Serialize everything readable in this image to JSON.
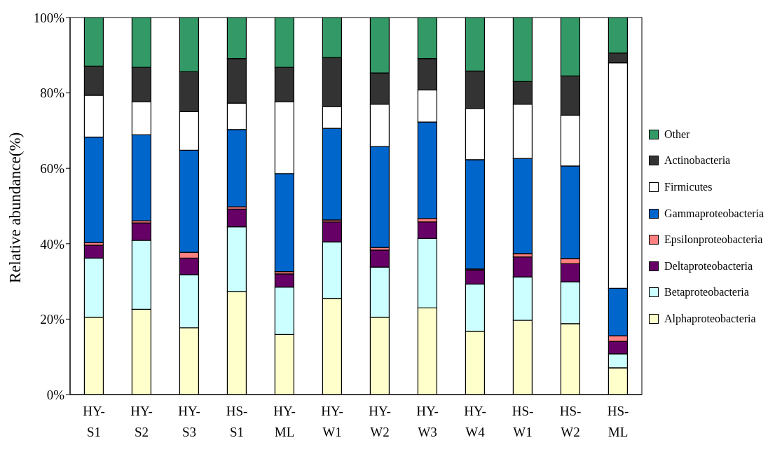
{
  "chart_data": {
    "type": "bar",
    "stacked": true,
    "ylabel": "Relative abundance(%)",
    "categories": [
      "HY-S1",
      "HY-S2",
      "HY-S3",
      "HS-S1",
      "HY-ML",
      "HY-W1",
      "HY-W2",
      "HY-W3",
      "HY-W4",
      "HS-W1",
      "HS-W2",
      "HS-ML"
    ],
    "ylim": [
      0,
      100
    ],
    "yticks": [
      {
        "value": 0,
        "label": "0%"
      },
      {
        "value": 20,
        "label": "20%"
      },
      {
        "value": 40,
        "label": "40%"
      },
      {
        "value": 60,
        "label": "60%"
      },
      {
        "value": 80,
        "label": "80%"
      },
      {
        "value": 100,
        "label": "100%"
      }
    ],
    "grid": false,
    "legend": "right",
    "series": [
      {
        "name": "Alphaproteobacteria",
        "color": "#ffffcc",
        "values": [
          20.5,
          22.6,
          17.7,
          27.3,
          15.9,
          25.5,
          20.5,
          23.0,
          16.8,
          19.7,
          18.8,
          7.1
        ]
      },
      {
        "name": "Betaproteobacteria",
        "color": "#ccffff",
        "values": [
          15.7,
          18.3,
          14.1,
          17.2,
          12.6,
          15.0,
          13.3,
          18.4,
          12.5,
          11.5,
          11.1,
          3.7
        ]
      },
      {
        "name": "Deltaproteobacteria",
        "color": "#660066",
        "values": [
          3.4,
          4.6,
          4.4,
          4.7,
          3.5,
          5.3,
          4.5,
          4.4,
          3.7,
          5.3,
          4.8,
          3.3
        ]
      },
      {
        "name": "Epsilonproteobacteria",
        "color": "#ff8080",
        "values": [
          0.7,
          0.6,
          1.5,
          0.6,
          0.6,
          0.5,
          0.7,
          0.9,
          0.3,
          0.9,
          1.4,
          1.5
        ]
      },
      {
        "name": "Gammaproteobacteria",
        "color": "#0066cc",
        "values": [
          28.0,
          22.8,
          27.1,
          20.5,
          26.0,
          24.3,
          26.8,
          25.6,
          29.0,
          25.2,
          24.5,
          12.6
        ]
      },
      {
        "name": "Firmicutes",
        "color": "#ffffff",
        "values": [
          11.1,
          8.7,
          10.2,
          7.0,
          19.0,
          5.8,
          11.2,
          8.5,
          13.6,
          14.4,
          13.5,
          59.8
        ]
      },
      {
        "name": "Actinobacteria",
        "color": "#333333",
        "values": [
          7.7,
          9.2,
          10.6,
          11.8,
          9.2,
          13.0,
          8.3,
          8.3,
          9.9,
          6.0,
          10.4,
          2.6
        ]
      },
      {
        "name": "Other",
        "color": "#339966",
        "values": [
          12.9,
          13.2,
          14.4,
          10.9,
          13.2,
          10.6,
          14.7,
          10.9,
          14.2,
          17.0,
          15.5,
          9.4
        ]
      }
    ]
  }
}
